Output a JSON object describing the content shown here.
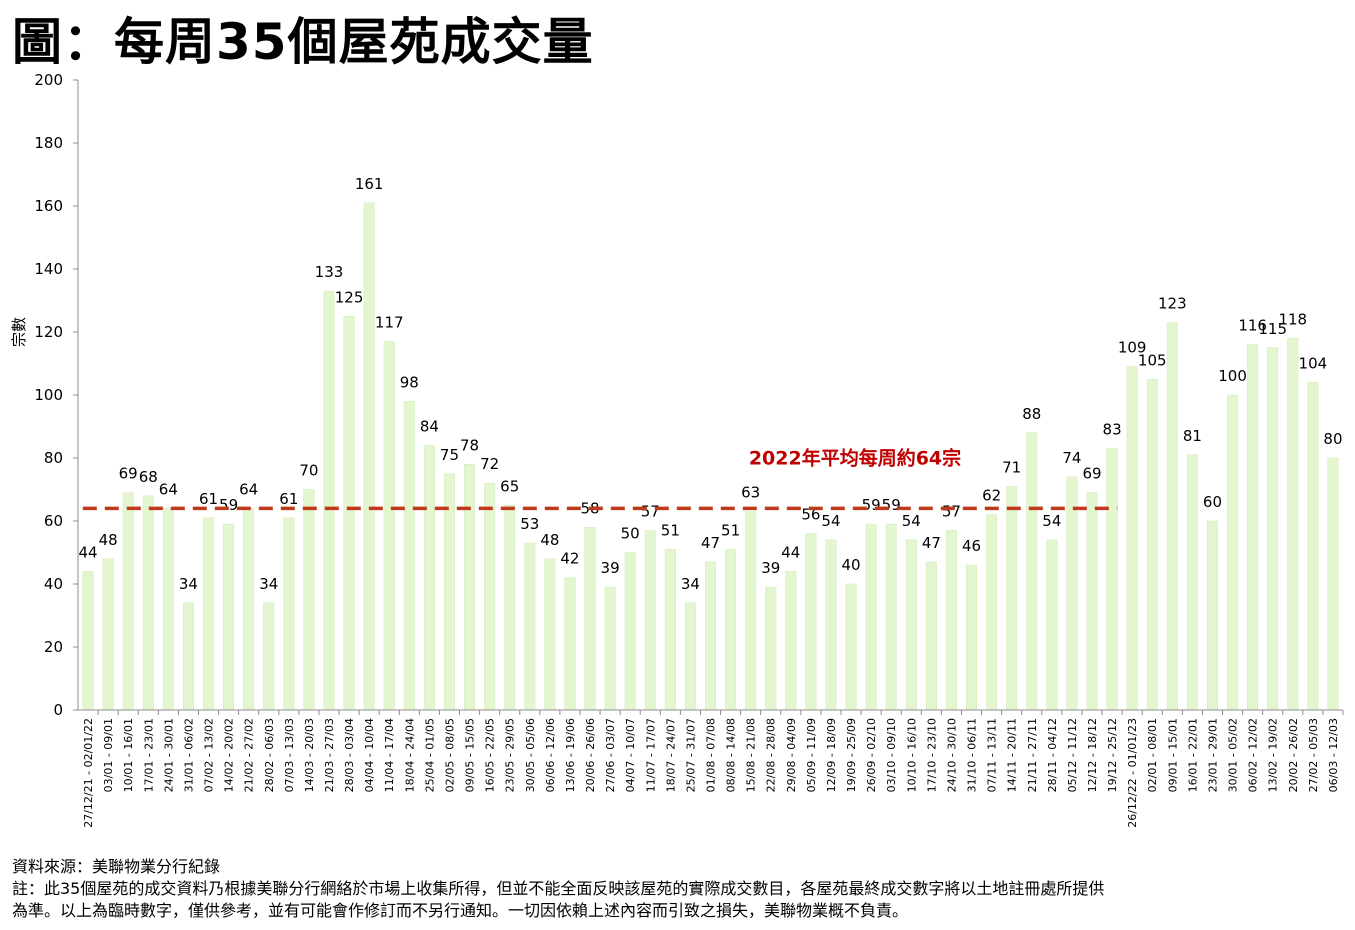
{
  "title": "圖：每周35個屋苑成交量",
  "notes": {
    "source": "資料來源：美聯物業分行紀錄",
    "note_line1": "註：此35個屋苑的成交資料乃根據美聯分行網絡於市場上收集所得，但並不能全面反映該屋苑的實際成交數目，各屋苑最終成交數字將以土地註冊處所提供",
    "note_line2": "為準。以上為臨時數字，僅供參考，並有可能會作修訂而不另行通知。一切因依賴上述內容而引致之損失，美聯物業概不負責。"
  },
  "colors": {
    "bar": "#e4f6d0",
    "bar_stroke": "#d5edbd",
    "average_line": "#c0391b",
    "average_label": "#c00000",
    "axis": "#8c8c8c"
  },
  "chart_data": {
    "type": "bar",
    "title": "",
    "xlabel": "",
    "ylabel": "宗數",
    "ylim": [
      0,
      200
    ],
    "yticks": [
      0,
      20,
      40,
      60,
      80,
      100,
      120,
      140,
      160,
      180,
      200
    ],
    "grid": false,
    "categories": [
      "27/12/21 - 02/01/22",
      "03/01 - 09/01",
      "10/01 - 16/01",
      "17/01 - 23/01",
      "24/01 - 30/01",
      "31/01 - 06/02",
      "07/02 - 13/02",
      "14/02 - 20/02",
      "21/02 - 27/02",
      "28/02 - 06/03",
      "07/03 - 13/03",
      "14/03 - 20/03",
      "21/03 - 27/03",
      "28/03 - 03/04",
      "04/04 - 10/04",
      "11/04 - 17/04",
      "18/04 - 24/04",
      "25/04 - 01/05",
      "02/05 - 08/05",
      "09/05 - 15/05",
      "16/05 - 22/05",
      "23/05 - 29/05",
      "30/05 - 05/06",
      "06/06 - 12/06",
      "13/06 - 19/06",
      "20/06 - 26/06",
      "27/06 - 03/07",
      "04/07 - 10/07",
      "11/07 - 17/07",
      "18/07 - 24/07",
      "25/07 - 31/07",
      "01/08 - 07/08",
      "08/08 - 14/08",
      "15/08 - 21/08",
      "22/08 - 28/08",
      "29/08 - 04/09",
      "05/09 - 11/09",
      "12/09 - 18/09",
      "19/09 - 25/09",
      "26/09 - 02/10",
      "03/10 - 09/10",
      "10/10 - 16/10",
      "17/10 - 23/10",
      "24/10 - 30/10",
      "31/10 - 06/11",
      "07/11 - 13/11",
      "14/11 - 20/11",
      "21/11 - 27/11",
      "28/11 - 04/12",
      "05/12 - 11/12",
      "12/12 - 18/12",
      "19/12 - 25/12",
      "26/12/22 - 01/01/23",
      "02/01 - 08/01",
      "09/01 - 15/01",
      "16/01 - 22/01",
      "23/01 - 29/01",
      "30/01 - 05/02",
      "06/02 - 12/02",
      "13/02 - 19/02",
      "20/02 - 26/02",
      "27/02 - 05/03",
      "06/03 - 12/03"
    ],
    "values": [
      44,
      48,
      69,
      68,
      64,
      34,
      61,
      59,
      64,
      34,
      61,
      70,
      133,
      125,
      161,
      117,
      98,
      84,
      75,
      78,
      72,
      65,
      53,
      48,
      42,
      58,
      39,
      50,
      57,
      51,
      34,
      47,
      51,
      63,
      39,
      44,
      56,
      54,
      40,
      59,
      59,
      54,
      47,
      57,
      46,
      62,
      71,
      88,
      54,
      74,
      69,
      83,
      109,
      105,
      123,
      81,
      60,
      100,
      116,
      115,
      118,
      104,
      80
    ],
    "average": {
      "label": "2022年平均每周約64宗",
      "value": 64,
      "start_index": 0,
      "end_index": 51
    }
  }
}
